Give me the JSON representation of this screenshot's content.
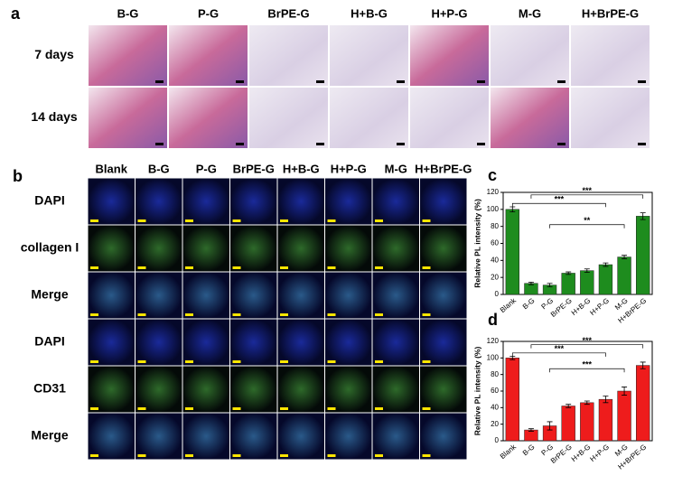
{
  "panel_a": {
    "label": "a",
    "columns": [
      "B-G",
      "P-G",
      "BrPE-G",
      "H+B-G",
      "H+P-G",
      "M-G",
      "H+BrPE-G"
    ],
    "rows": [
      "7 days",
      "14 days"
    ]
  },
  "panel_b": {
    "label": "b",
    "columns": [
      "Blank",
      "B-G",
      "P-G",
      "BrPE-G",
      "H+B-G",
      "H+P-G",
      "M-G",
      "H+BrPE-G"
    ],
    "rows": [
      "DAPI",
      "collagen I",
      "Merge",
      "DAPI",
      "CD31",
      "Merge"
    ]
  },
  "chart_data": [
    {
      "type": "bar",
      "panel_label": "c",
      "ylabel": "Relative PL intensity (%)",
      "categories": [
        "Blank",
        "B-G",
        "P-G",
        "BrPE-G",
        "H+B-G",
        "H+P-G",
        "M-G",
        "H+BrPE-G"
      ],
      "values": [
        100,
        13,
        11,
        25,
        28,
        35,
        44,
        92
      ],
      "errors": [
        3,
        1.5,
        2,
        1.5,
        2,
        2,
        2,
        4
      ],
      "color": "#1e8c1e",
      "ylim": [
        0,
        120
      ],
      "yticks": [
        0,
        20,
        40,
        60,
        80,
        100,
        120
      ],
      "annotations": [
        "***",
        "***",
        "**"
      ]
    },
    {
      "type": "bar",
      "panel_label": "d",
      "ylabel": "Relative PL intensity (%)",
      "categories": [
        "Blank",
        "B-G",
        "P-G",
        "BrPE-G",
        "H+B-G",
        "H+P-G",
        "M-G",
        "H+BrPE-G"
      ],
      "values": [
        100,
        13,
        18,
        42,
        46,
        50,
        60,
        91
      ],
      "errors": [
        2,
        1.5,
        5,
        2,
        2,
        4,
        5,
        4
      ],
      "color": "#ee1c1c",
      "ylim": [
        0,
        120
      ],
      "yticks": [
        0,
        20,
        40,
        60,
        80,
        100,
        120
      ],
      "annotations": [
        "***",
        "***",
        "***"
      ]
    }
  ]
}
